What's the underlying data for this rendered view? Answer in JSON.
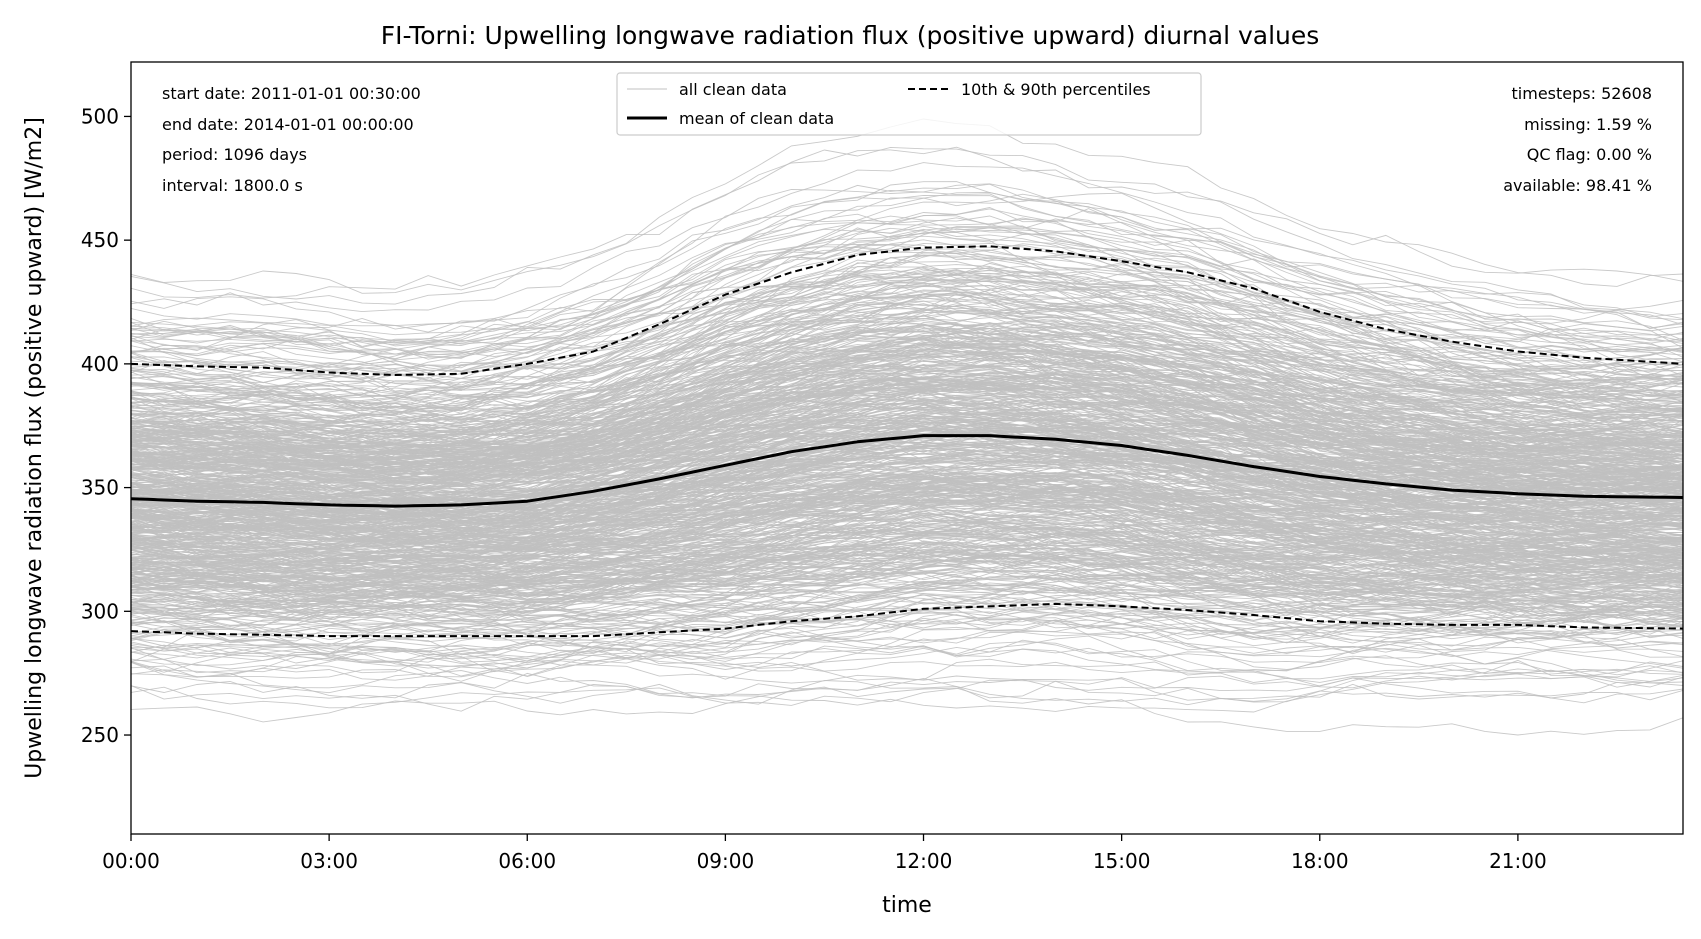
{
  "chart_data": {
    "type": "line",
    "title": "FI-Torni: Upwelling longwave radiation flux (positive upward) diurnal values",
    "xlabel": "time",
    "ylabel": "Upwelling longwave radiation flux (positive upward) [W/m2]",
    "x_ticks": [
      "00:00",
      "03:00",
      "06:00",
      "09:00",
      "12:00",
      "15:00",
      "18:00",
      "21:00"
    ],
    "x_range_hours": [
      0,
      23.5
    ],
    "y_ticks": [
      250,
      300,
      350,
      400,
      450,
      500
    ],
    "ylim": [
      210,
      522
    ],
    "grid": false,
    "legend_position": "top-center",
    "legend": [
      {
        "label": "all clean data",
        "style": "thin-grey"
      },
      {
        "label": "mean of clean data",
        "style": "thick-black"
      },
      {
        "label": "10th & 90th percentiles",
        "style": "dashed-black"
      }
    ],
    "info_left": [
      "start date: 2011-01-01 00:30:00",
      "end date: 2014-01-01 00:00:00",
      "period: 1096 days",
      "interval: 1800.0 s"
    ],
    "info_right": [
      "timesteps: 52608",
      "missing: 1.59 %",
      "QC flag: 0.00 %",
      "available: 98.41 %"
    ],
    "hours": [
      0,
      1,
      2,
      3,
      4,
      5,
      6,
      7,
      8,
      9,
      10,
      11,
      12,
      13,
      14,
      15,
      16,
      17,
      18,
      19,
      20,
      21,
      22,
      23.5
    ],
    "series": [
      {
        "name": "mean of clean data",
        "values": [
          345.5,
          344.5,
          344,
          343,
          342.5,
          343,
          344.5,
          348.5,
          353.5,
          359,
          364.5,
          368.5,
          371,
          371,
          369.5,
          367,
          363,
          358.5,
          354.5,
          351.5,
          349,
          347.5,
          346.5,
          346
        ]
      },
      {
        "name": "10th percentile",
        "values": [
          292,
          291,
          290.5,
          290,
          290,
          290,
          290,
          290,
          291.5,
          293,
          296,
          298,
          301,
          302,
          303,
          302,
          300.5,
          298.5,
          296,
          295,
          294.5,
          294.5,
          293.5,
          293
        ]
      },
      {
        "name": "90th percentile",
        "values": [
          400,
          399,
          398.5,
          396.5,
          395.5,
          396,
          400,
          405,
          416,
          428,
          437,
          444,
          447,
          447.5,
          445.5,
          441.5,
          437,
          430.5,
          421,
          414,
          409,
          405,
          402.5,
          400
        ]
      }
    ],
    "colors": {
      "clean": "#c0c0c0",
      "mean": "#000000",
      "percentile": "#000000"
    }
  }
}
